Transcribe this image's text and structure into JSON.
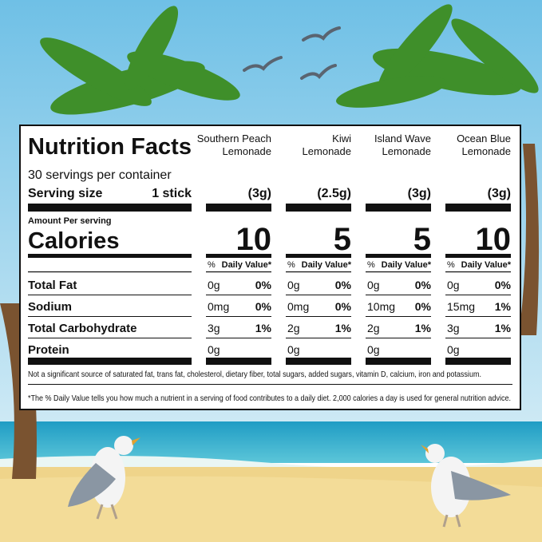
{
  "label": {
    "title": "Nutrition Facts",
    "servings": "30 servings per container",
    "serving_size_label": "Serving size",
    "serving_size": "1 stick",
    "amount_per_serving": "Amount Per serving",
    "calories_label": "Calories",
    "nutrients": [
      "Total Fat",
      "Sodium",
      "Total Carbohydrate",
      "Protein"
    ],
    "columns": [
      {
        "name_lines": [
          "Southern Peach",
          "Lemonade"
        ],
        "serving": "(3g)",
        "calories": "10",
        "dv_percent": "%",
        "dv_label": "Daily Value*",
        "amounts": [
          "0g",
          "0mg",
          "3g",
          "0g"
        ],
        "daily_values": [
          "0%",
          "0%",
          "1%"
        ]
      },
      {
        "name_lines": [
          "Kiwi",
          "Lemonade"
        ],
        "serving": "(2.5g)",
        "calories": "5",
        "dv_percent": "%",
        "dv_label": "Daily Value*",
        "amounts": [
          "0g",
          "0mg",
          "2g",
          "0g"
        ],
        "daily_values": [
          "0%",
          "0%",
          "1%"
        ]
      },
      {
        "name_lines": [
          "Island Wave",
          "Lemonade"
        ],
        "serving": "(3g)",
        "calories": "5",
        "dv_percent": "%",
        "dv_label": "Daily Value*",
        "amounts": [
          "0g",
          "10mg",
          "2g",
          "0g"
        ],
        "daily_values": [
          "0%",
          "0%",
          "1%"
        ]
      },
      {
        "name_lines": [
          "Ocean Blue",
          "Lemonade"
        ],
        "serving": "(3g)",
        "calories": "10",
        "dv_percent": "%",
        "dv_label": "Daily Value*",
        "amounts": [
          "0g",
          "15mg",
          "3g",
          "0g"
        ],
        "daily_values": [
          "0%",
          "1%",
          "1%"
        ]
      }
    ],
    "footnotes": [
      "Not a significant source of saturated fat, trans fat, cholesterol, dietary fiber, total sugars, added sugars, vitamin D, calcium, iron and potassium.",
      "*The % Daily Value tells you how much a nutrient in a serving of food contributes to a daily diet. 2,000 calories a day is used for general nutrition advice."
    ]
  }
}
